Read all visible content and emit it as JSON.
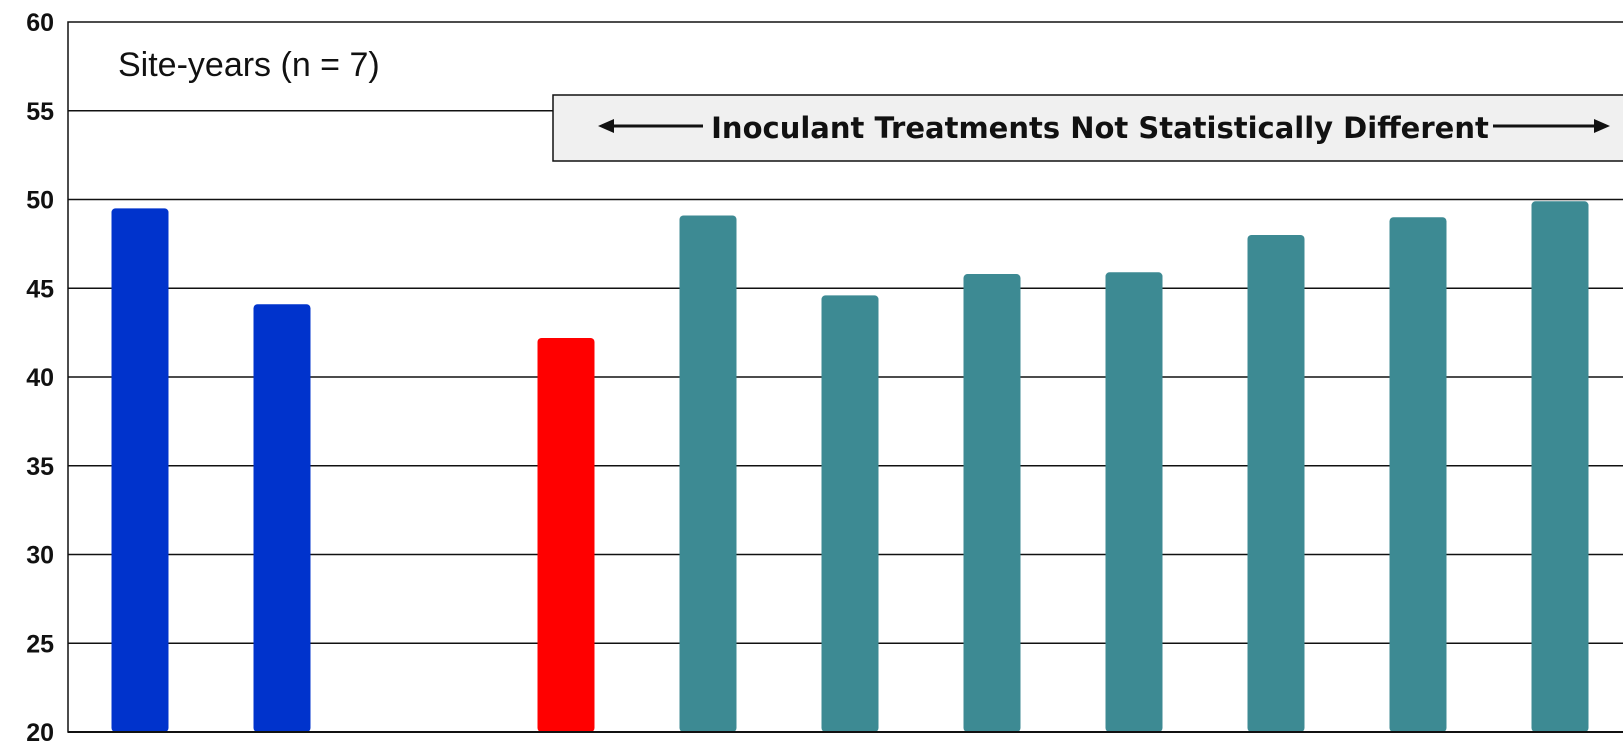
{
  "chart_data": {
    "type": "bar",
    "title": "",
    "xlabel": "",
    "ylabel": "",
    "ylim": [
      20,
      60
    ],
    "yticks": [
      "20",
      "25",
      "30",
      "35",
      "40",
      "45",
      "50",
      "55",
      "60"
    ],
    "grid": true,
    "categories": [
      "",
      "",
      "",
      "",
      "",
      "",
      "",
      "",
      "",
      "",
      ""
    ],
    "values": [
      49.5,
      44.1,
      null,
      42.2,
      49.1,
      44.6,
      45.8,
      45.9,
      48.0,
      49.0,
      49.9
    ],
    "colors": [
      "#0033cc",
      "#0033cc",
      null,
      "#ff0000",
      "#3d8a93",
      "#3d8a93",
      "#3d8a93",
      "#3d8a93",
      "#3d8a93",
      "#3d8a93",
      "#3d8a93"
    ],
    "annotations": {
      "site_years": "Site-years (n = 7)",
      "banner": "Inoculant Treatments Not Statistically Different"
    }
  }
}
